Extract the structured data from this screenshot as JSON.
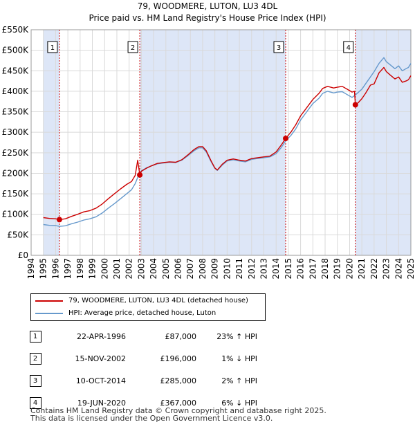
{
  "title": {
    "line1": "79, WOODMERE, LUTON, LU3 4DL",
    "line2": "Price paid vs. HM Land Registry's House Price Index (HPI)"
  },
  "colors": {
    "price": "#cc0000",
    "hpi": "#6699cc",
    "shade": "#dde6f7",
    "marker_line": "#cc0000"
  },
  "chart_data": {
    "type": "line",
    "xlabel": "",
    "ylabel": "",
    "xlim": [
      1994,
      2025
    ],
    "ylim": [
      0,
      550000
    ],
    "y_ticks": [
      0,
      50000,
      100000,
      150000,
      200000,
      250000,
      300000,
      350000,
      400000,
      450000,
      500000,
      550000
    ],
    "y_tick_labels": [
      "£0",
      "£50K",
      "£100K",
      "£150K",
      "£200K",
      "£250K",
      "£300K",
      "£350K",
      "£400K",
      "£450K",
      "£500K",
      "£550K"
    ],
    "x_ticks": [
      "1994",
      "1995",
      "1996",
      "1997",
      "1998",
      "1999",
      "2000",
      "2001",
      "2002",
      "2003",
      "2004",
      "2005",
      "2006",
      "2007",
      "2008",
      "2009",
      "2010",
      "2011",
      "2012",
      "2013",
      "2014",
      "2015",
      "2016",
      "2017",
      "2018",
      "2019",
      "2020",
      "2021",
      "2022",
      "2023",
      "2024",
      "2025"
    ],
    "grid": true,
    "series": [
      {
        "name": "79, WOODMERE, LUTON, LU3 4DL (detached house)",
        "points": [
          [
            1995.0,
            92000
          ],
          [
            1995.5,
            90000
          ],
          [
            1996.0,
            89000
          ],
          [
            1996.31,
            87000
          ],
          [
            1996.8,
            89000
          ],
          [
            1997.3,
            95000
          ],
          [
            1997.8,
            100000
          ],
          [
            1998.3,
            106000
          ],
          [
            1998.8,
            109000
          ],
          [
            1999.3,
            115000
          ],
          [
            1999.8,
            125000
          ],
          [
            2000.3,
            138000
          ],
          [
            2000.8,
            150000
          ],
          [
            2001.3,
            162000
          ],
          [
            2001.8,
            173000
          ],
          [
            2002.2,
            180000
          ],
          [
            2002.5,
            195000
          ],
          [
            2002.7,
            232000
          ],
          [
            2002.87,
            196000
          ],
          [
            2003.0,
            205000
          ],
          [
            2003.4,
            212000
          ],
          [
            2003.8,
            218000
          ],
          [
            2004.3,
            224000
          ],
          [
            2004.8,
            226000
          ],
          [
            2005.3,
            228000
          ],
          [
            2005.8,
            227000
          ],
          [
            2006.3,
            233000
          ],
          [
            2006.8,
            245000
          ],
          [
            2007.3,
            258000
          ],
          [
            2007.7,
            265000
          ],
          [
            2008.0,
            265000
          ],
          [
            2008.3,
            255000
          ],
          [
            2008.7,
            230000
          ],
          [
            2009.0,
            213000
          ],
          [
            2009.2,
            208000
          ],
          [
            2009.6,
            222000
          ],
          [
            2010.0,
            232000
          ],
          [
            2010.5,
            235000
          ],
          [
            2011.0,
            232000
          ],
          [
            2011.5,
            230000
          ],
          [
            2012.0,
            236000
          ],
          [
            2012.5,
            238000
          ],
          [
            2013.0,
            240000
          ],
          [
            2013.5,
            242000
          ],
          [
            2014.0,
            252000
          ],
          [
            2014.4,
            268000
          ],
          [
            2014.78,
            285000
          ],
          [
            2015.2,
            300000
          ],
          [
            2015.6,
            318000
          ],
          [
            2016.0,
            340000
          ],
          [
            2016.5,
            360000
          ],
          [
            2017.0,
            380000
          ],
          [
            2017.5,
            395000
          ],
          [
            2017.8,
            407000
          ],
          [
            2018.2,
            412000
          ],
          [
            2018.7,
            408000
          ],
          [
            2019.0,
            410000
          ],
          [
            2019.4,
            412000
          ],
          [
            2019.8,
            405000
          ],
          [
            2020.2,
            398000
          ],
          [
            2020.4,
            400000
          ],
          [
            2020.47,
            367000
          ],
          [
            2020.7,
            372000
          ],
          [
            2021.0,
            382000
          ],
          [
            2021.3,
            395000
          ],
          [
            2021.7,
            415000
          ],
          [
            2022.0,
            418000
          ],
          [
            2022.4,
            445000
          ],
          [
            2022.8,
            458000
          ],
          [
            2023.0,
            448000
          ],
          [
            2023.3,
            440000
          ],
          [
            2023.7,
            430000
          ],
          [
            2024.0,
            435000
          ],
          [
            2024.3,
            422000
          ],
          [
            2024.6,
            425000
          ],
          [
            2024.8,
            428000
          ],
          [
            2025.0,
            438000
          ]
        ]
      },
      {
        "name": "HPI: Average price, detached house, Luton",
        "points": [
          [
            1995.0,
            75000
          ],
          [
            1995.5,
            73000
          ],
          [
            1996.0,
            72500
          ],
          [
            1996.31,
            70500
          ],
          [
            1996.8,
            72000
          ],
          [
            1997.3,
            77000
          ],
          [
            1997.8,
            81000
          ],
          [
            1998.3,
            86000
          ],
          [
            1998.8,
            89000
          ],
          [
            1999.3,
            94000
          ],
          [
            1999.8,
            103000
          ],
          [
            2000.3,
            115000
          ],
          [
            2000.8,
            126000
          ],
          [
            2001.3,
            138000
          ],
          [
            2001.8,
            150000
          ],
          [
            2002.2,
            160000
          ],
          [
            2002.5,
            175000
          ],
          [
            2002.7,
            190000
          ],
          [
            2002.87,
            198000
          ],
          [
            2003.0,
            206000
          ],
          [
            2003.4,
            213000
          ],
          [
            2003.8,
            218000
          ],
          [
            2004.3,
            223000
          ],
          [
            2004.8,
            225000
          ],
          [
            2005.3,
            227000
          ],
          [
            2005.8,
            226000
          ],
          [
            2006.3,
            232000
          ],
          [
            2006.8,
            243000
          ],
          [
            2007.3,
            255000
          ],
          [
            2007.7,
            262000
          ],
          [
            2008.0,
            262000
          ],
          [
            2008.3,
            252000
          ],
          [
            2008.7,
            228000
          ],
          [
            2009.0,
            212000
          ],
          [
            2009.2,
            207000
          ],
          [
            2009.6,
            220000
          ],
          [
            2010.0,
            230000
          ],
          [
            2010.5,
            233000
          ],
          [
            2011.0,
            230000
          ],
          [
            2011.5,
            228000
          ],
          [
            2012.0,
            234000
          ],
          [
            2012.5,
            236000
          ],
          [
            2013.0,
            238000
          ],
          [
            2013.5,
            240000
          ],
          [
            2014.0,
            248000
          ],
          [
            2014.4,
            262000
          ],
          [
            2014.78,
            279000
          ],
          [
            2015.2,
            292000
          ],
          [
            2015.6,
            308000
          ],
          [
            2016.0,
            330000
          ],
          [
            2016.5,
            350000
          ],
          [
            2017.0,
            370000
          ],
          [
            2017.5,
            383000
          ],
          [
            2017.8,
            395000
          ],
          [
            2018.2,
            400000
          ],
          [
            2018.7,
            396000
          ],
          [
            2019.0,
            398000
          ],
          [
            2019.4,
            399000
          ],
          [
            2019.8,
            392000
          ],
          [
            2020.2,
            385000
          ],
          [
            2020.47,
            391000
          ],
          [
            2020.7,
            397000
          ],
          [
            2021.0,
            405000
          ],
          [
            2021.3,
            418000
          ],
          [
            2021.7,
            435000
          ],
          [
            2022.0,
            448000
          ],
          [
            2022.4,
            468000
          ],
          [
            2022.8,
            482000
          ],
          [
            2023.0,
            472000
          ],
          [
            2023.3,
            465000
          ],
          [
            2023.7,
            455000
          ],
          [
            2024.0,
            462000
          ],
          [
            2024.3,
            450000
          ],
          [
            2024.6,
            455000
          ],
          [
            2024.8,
            458000
          ],
          [
            2025.0,
            468000
          ]
        ]
      }
    ],
    "sales": [
      {
        "num": "1",
        "year": 1996.31,
        "price": 87000
      },
      {
        "num": "2",
        "year": 2002.87,
        "price": 196000
      },
      {
        "num": "3",
        "year": 2014.78,
        "price": 285000
      },
      {
        "num": "4",
        "year": 2020.47,
        "price": 367000
      }
    ],
    "shaded_ranges": [
      [
        1995.0,
        1996.31
      ],
      [
        2002.87,
        2014.78
      ],
      [
        2020.47,
        2025.0
      ]
    ]
  },
  "legend": {
    "price_label": "79, WOODMERE, LUTON, LU3 4DL (detached house)",
    "hpi_label": "HPI: Average price, detached house, Luton"
  },
  "table": [
    {
      "num": "1",
      "date": "22-APR-1996",
      "price": "£87,000",
      "hpi": "23% ↑ HPI"
    },
    {
      "num": "2",
      "date": "15-NOV-2002",
      "price": "£196,000",
      "hpi": "1% ↓ HPI"
    },
    {
      "num": "3",
      "date": "10-OCT-2014",
      "price": "£285,000",
      "hpi": "2% ↑ HPI"
    },
    {
      "num": "4",
      "date": "19-JUN-2020",
      "price": "£367,000",
      "hpi": "6% ↓ HPI"
    }
  ],
  "footer": {
    "line1": "Contains HM Land Registry data © Crown copyright and database right 2025.",
    "line2": "This data is licensed under the Open Government Licence v3.0."
  }
}
